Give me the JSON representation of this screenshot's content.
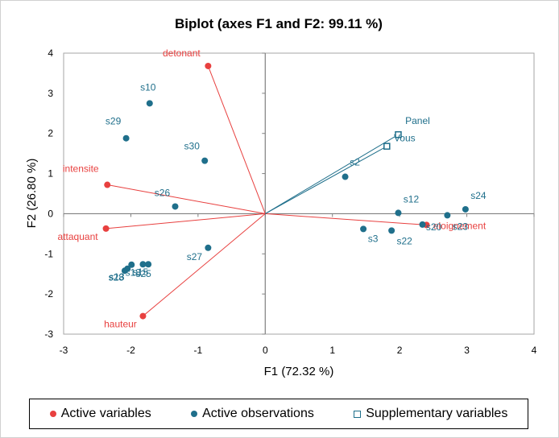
{
  "chart_data": {
    "type": "scatter",
    "title": "Biplot (axes F1 and F2: 99.11 %)",
    "xlabel": "F1 (72.32 %)",
    "ylabel": "F2 (26.80 %)",
    "xlim": [
      -3,
      4
    ],
    "ylim": [
      -3,
      4
    ],
    "xticks": [
      "-3",
      "-2",
      "-1",
      "0",
      "1",
      "2",
      "3",
      "4"
    ],
    "yticks": [
      "-3",
      "-2",
      "-1",
      "0",
      "1",
      "2",
      "3",
      "4"
    ],
    "grid": false,
    "legend_position": "bottom",
    "colors": {
      "active_variables": "#e8403f",
      "active_observations": "#1f6f8b",
      "supplementary_variables": "#1f6f8b"
    },
    "series": [
      {
        "name": "Active variables",
        "vectors": true,
        "points": [
          {
            "label": "detonant",
            "x": -0.85,
            "y": 3.68
          },
          {
            "label": "intensite",
            "x": -2.35,
            "y": 0.72
          },
          {
            "label": "attaquant",
            "x": -2.37,
            "y": -0.37
          },
          {
            "label": "hauteur",
            "x": -1.82,
            "y": -2.55
          },
          {
            "label": "eloignement",
            "x": 2.4,
            "y": -0.28
          }
        ]
      },
      {
        "name": "Active observations",
        "vectors": false,
        "points": [
          {
            "label": "s10",
            "x": -1.72,
            "y": 2.75
          },
          {
            "label": "s29",
            "x": -2.07,
            "y": 1.88
          },
          {
            "label": "s30",
            "x": -0.9,
            "y": 1.32
          },
          {
            "label": "s26",
            "x": -1.34,
            "y": 0.18
          },
          {
            "label": "s27",
            "x": -0.85,
            "y": -0.85
          },
          {
            "label": "s28",
            "x": -2.05,
            "y": -1.37
          },
          {
            "label": "s18",
            "x": -1.99,
            "y": -1.27
          },
          {
            "label": "s15",
            "x": -1.82,
            "y": -1.26
          },
          {
            "label": "s25",
            "x": -1.74,
            "y": -1.26
          },
          {
            "label": "s13",
            "x": -2.09,
            "y": -1.42
          },
          {
            "label": "s2",
            "x": 1.19,
            "y": 0.92
          },
          {
            "label": "s12",
            "x": 1.98,
            "y": 0.02
          },
          {
            "label": "s3",
            "x": 1.46,
            "y": -0.38
          },
          {
            "label": "s22",
            "x": 1.88,
            "y": -0.42
          },
          {
            "label": "s20",
            "x": 2.34,
            "y": -0.27
          },
          {
            "label": "s23",
            "x": 2.71,
            "y": -0.04
          },
          {
            "label": "s24",
            "x": 2.98,
            "y": 0.11
          }
        ]
      },
      {
        "name": "Supplementary variables",
        "vectors": true,
        "points": [
          {
            "label": "Panel",
            "x": 1.98,
            "y": 1.97
          },
          {
            "label": "Vous",
            "x": 1.81,
            "y": 1.68
          }
        ]
      }
    ]
  },
  "legend": {
    "active_variables": "Active variables",
    "active_observations": "Active observations",
    "supplementary_variables": "Supplementary variables"
  }
}
